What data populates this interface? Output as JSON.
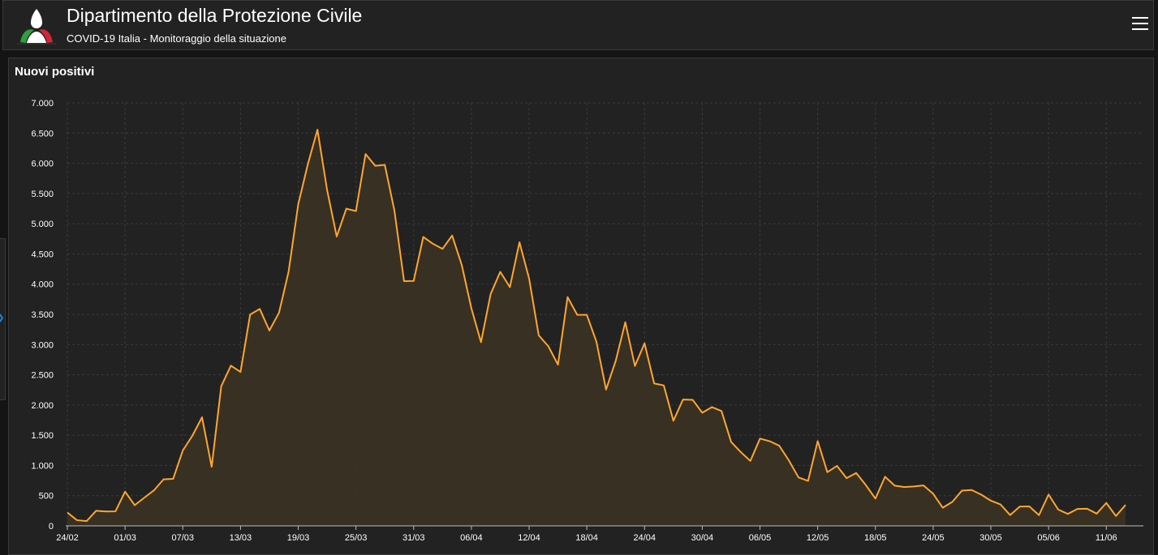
{
  "header": {
    "title": "Dipartimento della Protezione Civile",
    "subtitle": "COVID-19 Italia - Monitoraggio della situazione",
    "menu_icon": "hamburger-menu-icon",
    "logo_icon": "protezione-civile-logo"
  },
  "colors": {
    "background": "#141414",
    "panel": "#222222",
    "line": "#ffa630",
    "area_fill": "#3a3124"
  },
  "chart_data": {
    "type": "area",
    "title": "Nuovi positivi",
    "xlabel": "",
    "ylabel": "",
    "ylim": [
      0,
      7000
    ],
    "y_ticks": [
      0,
      500,
      1000,
      1500,
      2000,
      2500,
      3000,
      3500,
      4000,
      4500,
      5000,
      5500,
      6000,
      6500,
      7000
    ],
    "y_tick_labels": [
      "0",
      "500",
      "1.000",
      "1.500",
      "2.000",
      "2.500",
      "3.000",
      "3.500",
      "4.000",
      "4.500",
      "5.000",
      "5.500",
      "6.000",
      "6.500",
      "7.000"
    ],
    "x_tick_labels": [
      "24/02",
      "01/03",
      "07/03",
      "13/03",
      "19/03",
      "25/03",
      "31/03",
      "06/04",
      "12/04",
      "18/04",
      "24/04",
      "30/04",
      "06/05",
      "12/05",
      "18/05",
      "24/05",
      "30/05",
      "05/06",
      "11/06"
    ],
    "x_tick_step_days": 6,
    "grid": true,
    "series": [
      {
        "values": [
          221,
          93,
          78,
          250,
          238,
          240,
          566,
          342,
          466,
          587,
          769,
          778,
          1247,
          1492,
          1797,
          977,
          2313,
          2651,
          2547,
          3497,
          3590,
          3233,
          3526,
          4207,
          5322,
          5986,
          6557,
          5560,
          4789,
          5249,
          5210,
          6153,
          5959,
          5974,
          5217,
          4050,
          4053,
          4782,
          4668,
          4585,
          4805,
          4316,
          3599,
          3039,
          3836,
          4204,
          3951,
          4694,
          4092,
          3153,
          2972,
          2667,
          3786,
          3493,
          3491,
          3047,
          2256,
          2729,
          3370,
          2646,
          3021,
          2357,
          2324,
          1739,
          2091,
          2086,
          1872,
          1965,
          1900,
          1389,
          1221,
          1075,
          1444,
          1401,
          1327,
          1083,
          802,
          744,
          1402,
          888,
          992,
          789,
          875,
          675,
          451,
          813,
          665,
          642,
          652,
          669,
          531,
          300,
          397,
          584,
          593,
          516,
          416,
          355,
          178,
          318,
          321,
          177,
          518,
          270,
          197,
          280,
          283,
          202,
          379,
          163,
          346
        ]
      }
    ]
  }
}
